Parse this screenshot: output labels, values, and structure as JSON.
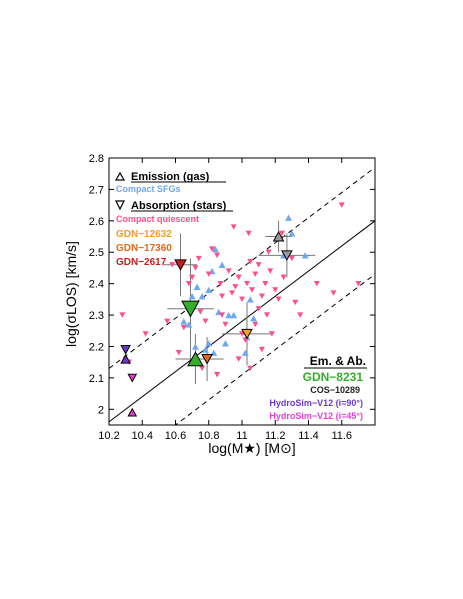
{
  "chart_data": {
    "type": "scatter",
    "xlabel": "log(M★) [M⊙]",
    "ylabel": "log(σLOS) [km/s]",
    "xlim": [
      10.2,
      11.8
    ],
    "ylim": [
      1.95,
      2.8
    ],
    "x_ticks": [
      "10.2",
      "10.4",
      "10.6",
      "10.8",
      "11",
      "11.2",
      "11.4",
      "11.6"
    ],
    "y_ticks": [
      "2",
      "2.1",
      "2.2",
      "2.3",
      "2.4",
      "2.5",
      "2.6",
      "2.7",
      "2.8"
    ],
    "legend": {
      "emission_header": "Emission (gas)",
      "compact_sfgs": "Compact SFGs",
      "absorption_header": "Absorption (stars)",
      "compact_quiescent": "Compact quiescent",
      "gdn_12632": "GDN−12632",
      "gdn_17360": "GDN−17360",
      "gdn_2617": "GDN−2617",
      "em_ab_header": "Em. & Ab.",
      "gdn_8231": "GDN−8231",
      "cos_10289": "COS−10289",
      "hydrosim_90": "HydroSim−V12 (i=90°)",
      "hydrosim_45": "HydroSim−V12 (i=45°)"
    },
    "colors": {
      "compact_sfgs": "#6fa8f0",
      "compact_quiescent": "#ff4d8d",
      "gdn_12632": "#f5a020",
      "gdn_17360": "#e06a18",
      "gdn_2617": "#c81e1e",
      "gdn_8231": "#33b02a",
      "cos_10289": "#999999",
      "hydrosim_90": "#6a3ad0",
      "hydrosim_45": "#e53fd8"
    },
    "relation": {
      "slope": 0.4,
      "pivot_x": 10.2,
      "pivot_y": 1.96,
      "offsets": [
        -0.17,
        0.17
      ]
    },
    "compact_sfgs": [
      [
        10.73,
        2.39
      ],
      [
        10.76,
        2.36
      ],
      [
        10.8,
        2.38
      ],
      [
        10.82,
        2.44
      ],
      [
        10.84,
        2.51
      ],
      [
        10.88,
        2.46
      ],
      [
        10.86,
        2.31
      ],
      [
        10.92,
        2.3
      ],
      [
        10.95,
        2.3
      ],
      [
        10.78,
        2.19
      ],
      [
        10.83,
        2.18
      ],
      [
        10.8,
        2.21
      ],
      [
        10.65,
        2.28
      ],
      [
        10.68,
        2.27
      ],
      [
        10.7,
        2.36
      ],
      [
        11.02,
        2.18
      ],
      [
        11.05,
        2.35
      ],
      [
        11.07,
        2.29
      ],
      [
        11.03,
        2.23
      ],
      [
        11.28,
        2.61
      ],
      [
        11.3,
        2.56
      ],
      [
        11.25,
        2.49
      ],
      [
        11.38,
        2.49
      ],
      [
        10.72,
        2.2
      ],
      [
        10.9,
        2.21
      ]
    ],
    "compact_quiescent": [
      [
        10.28,
        2.3
      ],
      [
        10.32,
        2.15
      ],
      [
        10.55,
        2.28
      ],
      [
        10.58,
        2.46
      ],
      [
        10.62,
        2.18
      ],
      [
        10.65,
        2.26
      ],
      [
        10.68,
        2.4
      ],
      [
        10.7,
        2.42
      ],
      [
        10.72,
        2.45
      ],
      [
        10.75,
        2.31
      ],
      [
        10.78,
        2.28
      ],
      [
        10.8,
        2.43
      ],
      [
        10.82,
        2.51
      ],
      [
        10.85,
        2.49
      ],
      [
        10.87,
        2.4
      ],
      [
        10.88,
        2.3
      ],
      [
        10.9,
        2.27
      ],
      [
        10.92,
        2.44
      ],
      [
        10.94,
        2.37
      ],
      [
        10.95,
        2.58
      ],
      [
        10.96,
        2.39
      ],
      [
        10.98,
        2.42
      ],
      [
        11.0,
        2.35
      ],
      [
        11.0,
        2.24
      ],
      [
        11.02,
        2.22
      ],
      [
        11.03,
        2.4
      ],
      [
        11.04,
        2.56
      ],
      [
        11.05,
        2.47
      ],
      [
        11.06,
        2.38
      ],
      [
        11.08,
        2.43
      ],
      [
        11.08,
        2.27
      ],
      [
        11.1,
        2.32
      ],
      [
        11.1,
        2.46
      ],
      [
        11.12,
        2.36
      ],
      [
        11.12,
        2.19
      ],
      [
        11.14,
        2.4
      ],
      [
        11.15,
        2.3
      ],
      [
        11.16,
        2.5
      ],
      [
        11.17,
        2.44
      ],
      [
        11.18,
        2.24
      ],
      [
        11.2,
        2.38
      ],
      [
        11.22,
        2.35
      ],
      [
        11.24,
        2.56
      ],
      [
        11.25,
        2.42
      ],
      [
        11.3,
        2.48
      ],
      [
        11.32,
        2.34
      ],
      [
        11.35,
        2.3
      ],
      [
        11.45,
        2.4
      ],
      [
        11.55,
        2.37
      ],
      [
        11.6,
        2.65
      ],
      [
        11.7,
        2.4
      ],
      [
        10.42,
        2.24
      ],
      [
        10.85,
        2.11
      ],
      [
        10.98,
        2.16
      ],
      [
        11.05,
        2.13
      ],
      [
        10.76,
        2.13
      ],
      [
        10.74,
        2.48
      ],
      [
        10.88,
        2.36
      ]
    ],
    "highlighted": [
      {
        "key": "gdn_12632",
        "x": 11.03,
        "y": 2.24,
        "shape": "down",
        "size": 10,
        "xerr": 0.15,
        "yerr": 0.1
      },
      {
        "key": "gdn_17360",
        "x": 10.79,
        "y": 2.16,
        "shape": "down",
        "size": 10,
        "xerr": 0.1,
        "yerr": 0.07
      },
      {
        "key": "gdn_2617",
        "x": 10.63,
        "y": 2.46,
        "shape": "down",
        "size": 11,
        "xerr": 0.1,
        "yerr": 0.1
      },
      {
        "key": "cos_10289",
        "x": 11.22,
        "y": 2.55,
        "shape": "up",
        "size": 10,
        "xerr": 0.08,
        "yerr": 0.05
      },
      {
        "key": "cos_10289",
        "x": 11.27,
        "y": 2.49,
        "shape": "down",
        "size": 10,
        "xerr": 0.17,
        "yerr": 0.07
      },
      {
        "key": "gdn_8231",
        "x": 10.69,
        "y": 2.32,
        "shape": "down",
        "size": 17,
        "xerr": 0.14,
        "yerr": 0.16
      },
      {
        "key": "gdn_8231",
        "x": 10.72,
        "y": 2.16,
        "shape": "up",
        "size": 15,
        "xerr": 0.12,
        "yerr": 0.08
      },
      {
        "key": "hydrosim_90",
        "x": 10.3,
        "y": 2.19,
        "shape": "down",
        "size": 9,
        "xerr": 0,
        "yerr": 0
      },
      {
        "key": "hydrosim_90",
        "x": 10.3,
        "y": 2.16,
        "shape": "up",
        "size": 9,
        "xerr": 0,
        "yerr": 0
      },
      {
        "key": "hydrosim_45",
        "x": 10.34,
        "y": 2.1,
        "shape": "down",
        "size": 8,
        "xerr": 0,
        "yerr": 0
      },
      {
        "key": "hydrosim_45",
        "x": 10.34,
        "y": 1.99,
        "shape": "up",
        "size": 8,
        "xerr": 0,
        "yerr": 0
      }
    ]
  }
}
